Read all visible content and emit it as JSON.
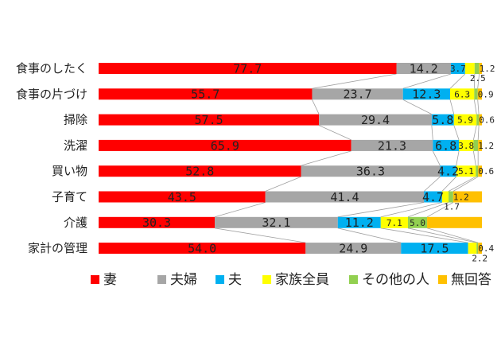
{
  "chart_data": {
    "type": "bar",
    "orientation": "horizontal",
    "stacked": "percent",
    "categories": [
      "食事のしたく",
      "食事の片づけ",
      "掃除",
      "洗濯",
      "買い物",
      "子育て",
      "介護",
      "家計の管理"
    ],
    "series": [
      {
        "name": "妻",
        "color": "#ff0000",
        "values": [
          77.7,
          55.7,
          57.5,
          65.9,
          52.8,
          43.5,
          30.3,
          54.0
        ]
      },
      {
        "name": "夫婦",
        "color": "#a6a6a6",
        "values": [
          14.2,
          23.7,
          29.4,
          21.3,
          36.3,
          41.4,
          32.1,
          24.9
        ]
      },
      {
        "name": "夫",
        "color": "#00b0f0",
        "values": [
          3.7,
          12.3,
          5.8,
          6.8,
          4.2,
          4.7,
          11.2,
          17.5
        ]
      },
      {
        "name": "家族全員",
        "color": "#ffff00",
        "values": [
          2.5,
          6.3,
          5.9,
          3.8,
          5.1,
          1.7,
          7.1,
          2.2
        ]
      },
      {
        "name": "その他の人",
        "color": "#92d050",
        "values": [
          1.2,
          0.9,
          0.6,
          1.2,
          0.6,
          1.2,
          5.0,
          0.4
        ]
      },
      {
        "name": "無回答",
        "color": "#ffc000",
        "values": [
          0.7,
          1.1,
          0.8,
          1.0,
          1.0,
          7.5,
          14.3,
          1.0
        ]
      }
    ],
    "data_labels": [
      [
        "77.7",
        "14.2",
        "3.7",
        "2.5",
        "1.2",
        ""
      ],
      [
        "55.7",
        "23.7",
        "12.3",
        "6.3",
        "0.9",
        ""
      ],
      [
        "57.5",
        "29.4",
        "5.8",
        "5.9",
        "0.6",
        ""
      ],
      [
        "65.9",
        "21.3",
        "6.8",
        "3.8",
        "1.2",
        ""
      ],
      [
        "52.8",
        "36.3",
        "4.2",
        "5.1",
        "0.6",
        ""
      ],
      [
        "43.5",
        "41.4",
        "4.7",
        "1.7",
        "1.2",
        ""
      ],
      [
        "30.3",
        "32.1",
        "11.2",
        "7.1",
        "5.0",
        ""
      ],
      [
        "54.0",
        "24.9",
        "17.5",
        "2.2",
        "0.4",
        ""
      ]
    ],
    "xlim": [
      0,
      100
    ],
    "legend": "bottom",
    "series_lines": true
  }
}
